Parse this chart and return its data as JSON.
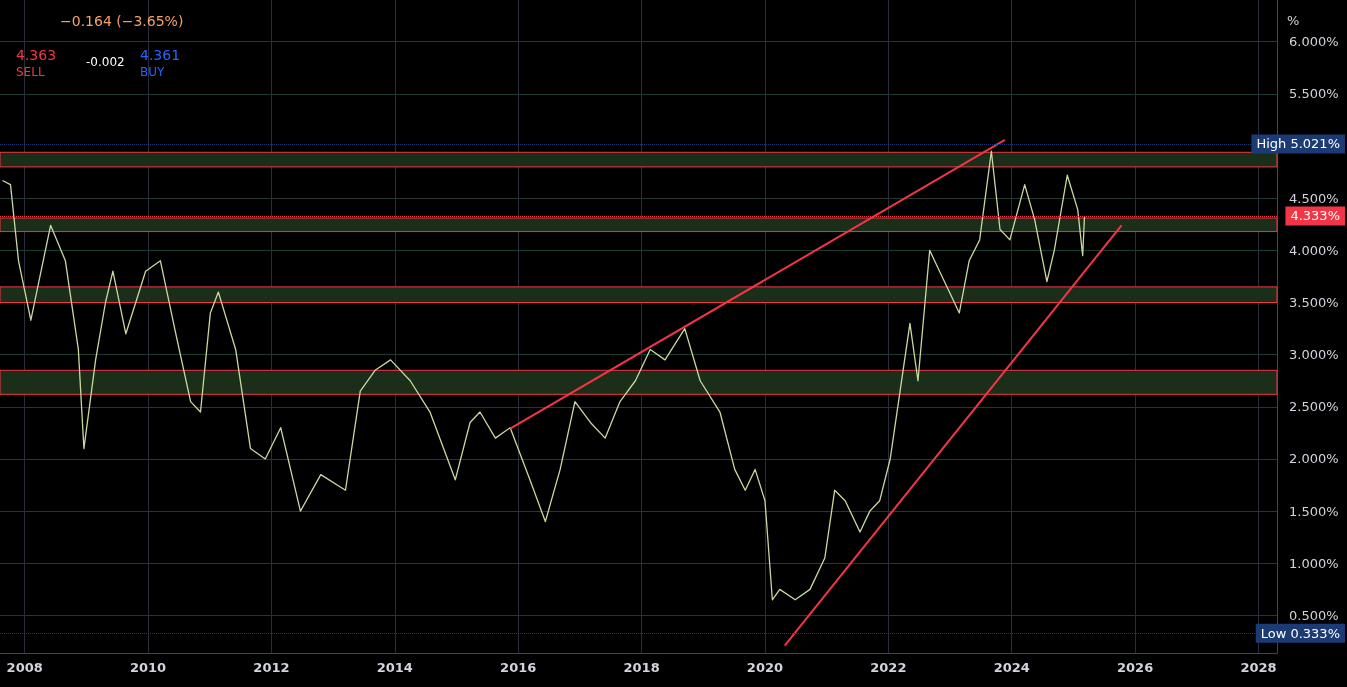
{
  "chart_data": {
    "type": "line",
    "annotations": [
      "−0.164 (−3.65%)",
      "4.363",
      "SELL",
      "-0.002",
      "4.361",
      "BUY",
      "%"
    ],
    "xlim": [
      2007.6,
      2028.3
    ],
    "xticks": [
      2008,
      2010,
      2012,
      2014,
      2016,
      2018,
      2020,
      2022,
      2024,
      2026,
      2028
    ],
    "ylim": [
      0.14,
      6.4
    ],
    "yticks": [
      {
        "value": 0.5,
        "label": "0.500%"
      },
      {
        "value": 1,
        "label": "1.000%"
      },
      {
        "value": 1.5,
        "label": "1.500%"
      },
      {
        "value": 2,
        "label": "2.000%"
      },
      {
        "value": 2.5,
        "label": "2.500%"
      },
      {
        "value": 3,
        "label": "3.000%"
      },
      {
        "value": 3.5,
        "label": "3.500%"
      },
      {
        "value": 4,
        "label": "4.000%"
      },
      {
        "value": 4.5,
        "label": "4.500%"
      },
      {
        "value": 5.5,
        "label": "5.500%"
      },
      {
        "value": 6,
        "label": "6.000%"
      }
    ],
    "grid": true,
    "marker": "none",
    "series": [
      {
        "color": "#c8d9a0",
        "line_style": "solid",
        "x": [
          2007.64,
          2007.77,
          2007.9,
          2008.1,
          2008.42,
          2008.66,
          2008.87,
          2008.96,
          2009.15,
          2009.31,
          2009.43,
          2009.64,
          2009.96,
          2010.2,
          2010.45,
          2010.69,
          2010.85,
          2011.01,
          2011.14,
          2011.42,
          2011.66,
          2011.9,
          2012.15,
          2012.47,
          2012.8,
          2013.2,
          2013.44,
          2013.68,
          2013.93,
          2014.25,
          2014.57,
          2014.98,
          2015.22,
          2015.38,
          2015.63,
          2015.87,
          2016.19,
          2016.44,
          2016.68,
          2016.92,
          2017.17,
          2017.41,
          2017.65,
          2017.9,
          2018.14,
          2018.38,
          2018.7,
          2018.95,
          2019.27,
          2019.51,
          2019.68,
          2019.84,
          2020.0,
          2020.12,
          2020.24,
          2020.49,
          2020.73,
          2020.97,
          2021.13,
          2021.3,
          2021.54,
          2021.7,
          2021.86,
          2022.03,
          2022.19,
          2022.35,
          2022.48,
          2022.67,
          2022.83,
          2022.99,
          2023.15,
          2023.31,
          2023.48,
          2023.67,
          2023.81,
          2023.97,
          2024.21,
          2024.37,
          2024.57,
          2024.69,
          2024.9,
          2025.07,
          2025.15,
          2025.18
        ],
        "values": [
          4.67,
          4.63,
          3.9,
          3.33,
          4.24,
          3.9,
          3.05,
          2.1,
          2.95,
          3.5,
          3.8,
          3.2,
          3.8,
          3.9,
          3.2,
          2.55,
          2.45,
          3.4,
          3.6,
          3.05,
          2.1,
          2.0,
          2.3,
          1.5,
          1.85,
          1.7,
          2.65,
          2.85,
          2.95,
          2.75,
          2.45,
          1.8,
          2.35,
          2.45,
          2.2,
          2.3,
          1.8,
          1.4,
          1.9,
          2.55,
          2.35,
          2.2,
          2.55,
          2.75,
          3.05,
          2.95,
          3.25,
          2.75,
          2.45,
          1.9,
          1.7,
          1.9,
          1.6,
          0.65,
          0.75,
          0.65,
          0.75,
          1.05,
          1.7,
          1.6,
          1.3,
          1.5,
          1.6,
          2.0,
          2.65,
          3.3,
          2.75,
          4.0,
          3.8,
          3.6,
          3.4,
          3.9,
          4.1,
          4.95,
          4.2,
          4.1,
          4.63,
          4.3,
          3.7,
          4.0,
          4.72,
          4.39,
          3.95,
          4.33
        ]
      },
      {
        "color": "#f23645",
        "line_style": "solid",
        "x": [
          2015.87,
          2023.89
        ],
        "values": [
          2.29,
          5.06
        ]
      },
      {
        "color": "#f23645",
        "line_style": "solid",
        "x": [
          2020.32,
          2025.78
        ],
        "values": [
          0.21,
          4.24
        ]
      }
    ],
    "ref_lines": [
      {
        "axis": "y",
        "value": 5.021,
        "label": "High 5.021%",
        "color": "#1c3a73",
        "line_style": "dotted"
      },
      {
        "axis": "y",
        "value": 4.333,
        "label": "4.333%",
        "color": "#f23645",
        "line_style": "dotted"
      },
      {
        "axis": "y",
        "value": 0.333,
        "label": "Low 0.333%",
        "color": "#1c3a73",
        "line_style": "dotted"
      }
    ],
    "bands": [
      {
        "axis": "y",
        "from": 4.8,
        "to": 4.94,
        "color": "#1a2e1a"
      },
      {
        "axis": "y",
        "from": 4.18,
        "to": 4.31,
        "color": "#1a2e1a"
      },
      {
        "axis": "y",
        "from": 3.5,
        "to": 3.65,
        "color": "#1a2e1a"
      },
      {
        "axis": "y",
        "from": 2.62,
        "to": 2.85,
        "color": "#1a2e1a"
      }
    ]
  }
}
